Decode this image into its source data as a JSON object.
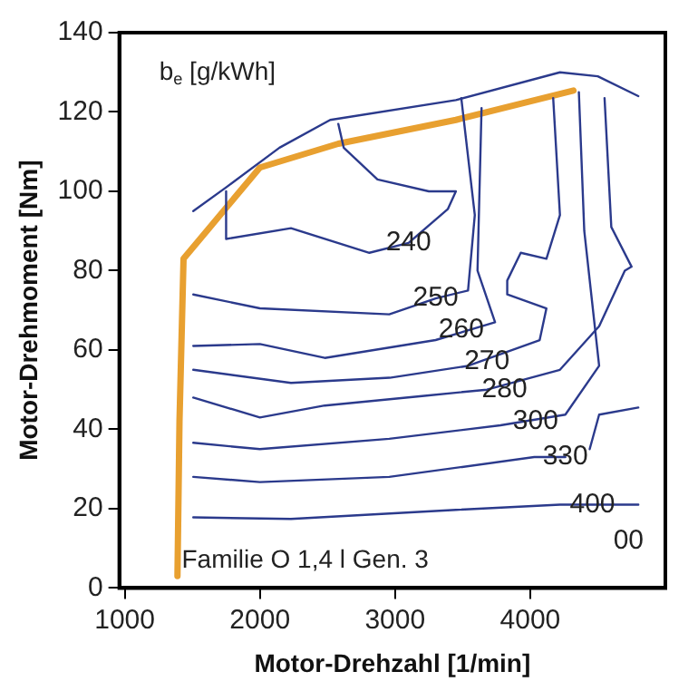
{
  "chart_data": {
    "type": "line",
    "xlabel": "Motor-Drehzahl [1/min]",
    "ylabel": "Motor-Drehmoment [Nm]",
    "xlim": [
      960,
      5000
    ],
    "xticks": [
      1000,
      2000,
      3000,
      4000
    ],
    "ylim": [
      0,
      140
    ],
    "yticks": [
      0,
      20,
      40,
      60,
      80,
      100,
      120,
      140
    ],
    "grid": false,
    "legend": false,
    "marker": "none",
    "line_style": "solid",
    "series": [
      {
        "color": "#2b3a8c",
        "x": [
          1507,
          1750,
          2145,
          2520,
          3450,
          4220,
          4500,
          4800
        ],
        "values": [
          95,
          101,
          111,
          118,
          123,
          130,
          129,
          124
        ]
      },
      {
        "color": "#2b3a8c",
        "x": [
          2580,
          2620,
          2870,
          3250,
          3450,
          3390,
          3100,
          2810,
          2230,
          1750,
          1750
        ],
        "values": [
          117,
          111,
          103,
          100,
          100,
          95.5,
          87,
          84.5,
          90.7,
          88,
          100
        ]
      },
      {
        "color": "#2b3a8c",
        "x": [
          1507,
          2000,
          2957,
          3300,
          3540,
          3590,
          3490
        ],
        "values": [
          74,
          70.5,
          69,
          73,
          75,
          94,
          123.5
        ]
      },
      {
        "color": "#2b3a8c",
        "x": [
          1507,
          2000,
          2480,
          3300,
          3740,
          3610,
          3640
        ],
        "values": [
          61,
          61.5,
          58,
          62.5,
          67,
          80,
          121
        ]
      },
      {
        "color": "#2b3a8c",
        "x": [
          1507,
          2230,
          2960,
          3540,
          4070,
          4120,
          3830,
          3830,
          3930,
          4120,
          4220,
          4170
        ],
        "values": [
          55,
          51.7,
          53,
          56,
          62.5,
          70.5,
          74,
          77.5,
          84.5,
          83,
          94,
          123.5
        ]
      },
      {
        "color": "#2b3a8c",
        "x": [
          1507,
          2000,
          2480,
          3200,
          3680,
          4220,
          4510,
          4700,
          4750,
          4600,
          4550
        ],
        "values": [
          48,
          43,
          46,
          48.4,
          50,
          55,
          66,
          80,
          81,
          91,
          123.5
        ]
      },
      {
        "color": "#2b3a8c",
        "x": [
          1507,
          2000,
          2957,
          3780,
          4260,
          4510,
          4400,
          4360
        ],
        "values": [
          36.6,
          35,
          37.6,
          41,
          43.7,
          56,
          90,
          125
        ]
      },
      {
        "color": "#2b3a8c",
        "x": [
          1507,
          2000,
          2957,
          4030,
          4260
        ],
        "values": [
          28,
          26.7,
          28,
          33,
          33
        ]
      },
      {
        "color": "#2b3a8c",
        "x": [
          4440,
          4510,
          4800
        ],
        "values": [
          35,
          43.7,
          45.5
        ]
      },
      {
        "color": "#2b3a8c",
        "x": [
          1507,
          2230,
          3450,
          4220,
          4800
        ],
        "values": [
          17.8,
          17.4,
          19.7,
          21,
          21
        ]
      },
      {
        "color": "#e8a030",
        "x": [
          1390,
          1405,
          1435,
          2000,
          2580,
          3450,
          4320
        ],
        "values": [
          3,
          42,
          83,
          106,
          112,
          118,
          125.4
        ]
      }
    ],
    "annotations": [
      "b$_{e}$ [g/kWh]",
      "Familie O 1,4 l Gen. 3",
      {
        "text": "240",
        "x": 3100,
        "y": 87
      },
      {
        "text": "250",
        "x": 3300,
        "y": 73
      },
      {
        "text": "260",
        "x": 3490,
        "y": 65
      },
      {
        "text": "270",
        "x": 3680,
        "y": 57
      },
      {
        "text": "280",
        "x": 3810,
        "y": 50
      },
      {
        "text": "300",
        "x": 4040,
        "y": 42
      },
      {
        "text": "330",
        "x": 4260,
        "y": 33
      },
      {
        "text": "400",
        "x": 4460,
        "y": 21
      },
      "00"
    ]
  }
}
